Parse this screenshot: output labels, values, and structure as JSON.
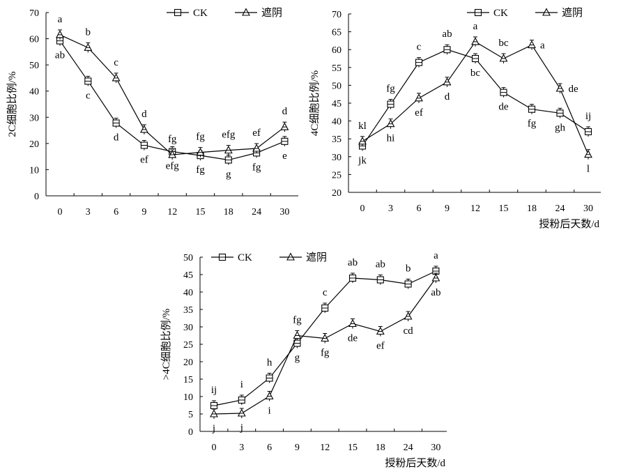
{
  "legend": {
    "ck": "CK",
    "shade": "遮阴"
  },
  "chart_data": [
    {
      "type": "line",
      "ylabel": "2C细胞比例/%",
      "xlabel": "",
      "categories": [
        "0",
        "3",
        "6",
        "9",
        "12",
        "15",
        "18",
        "24",
        "30"
      ],
      "ylim": [
        0,
        70
      ],
      "yticks": [
        0,
        10,
        20,
        30,
        40,
        50,
        60,
        70
      ],
      "series": [
        {
          "name": "CK",
          "marker": "square",
          "values": [
            59.2,
            43.8,
            27.8,
            19.3,
            16.9,
            15.4,
            13.7,
            16.4,
            20.8
          ],
          "letters": [
            "ab",
            "c",
            "d",
            "ef",
            "efg",
            "fg",
            "g",
            "fg",
            "e"
          ],
          "letter_pos": [
            "below",
            "below",
            "below",
            "below",
            "below",
            "below",
            "below",
            "below",
            "below"
          ]
        },
        {
          "name": "遮阴",
          "marker": "triangle",
          "values": [
            61.5,
            56.6,
            45.0,
            25.3,
            15.7,
            16.6,
            17.4,
            18.1,
            26.3
          ],
          "letters": [
            "a",
            "b",
            "c",
            "d",
            "fg",
            "fg",
            "efg",
            "ef",
            "d"
          ],
          "letter_pos": [
            "above",
            "above",
            "above",
            "above",
            "above",
            "above",
            "above",
            "above",
            "above"
          ]
        }
      ]
    },
    {
      "type": "line",
      "ylabel": "4C细胞比例/%",
      "xlabel": "授粉后天数/d",
      "categories": [
        "0",
        "3",
        "6",
        "9",
        "12",
        "15",
        "18",
        "24",
        "30"
      ],
      "ylim": [
        20,
        70
      ],
      "yticks": [
        20,
        25,
        30,
        35,
        40,
        45,
        50,
        55,
        60,
        65,
        70
      ],
      "series": [
        {
          "name": "CK",
          "marker": "square",
          "values": [
            33.0,
            44.7,
            56.4,
            60.0,
            57.5,
            48.0,
            43.3,
            42.2,
            37.0
          ],
          "letters": [
            "jk",
            "fg",
            "c",
            "ab",
            "bc",
            "de",
            "fg",
            "gh",
            "ij"
          ],
          "letter_pos": [
            "below",
            "above",
            "above",
            "above",
            "below",
            "below",
            "below",
            "below",
            "above"
          ]
        },
        {
          "name": "遮阴",
          "marker": "triangle",
          "values": [
            34.3,
            39.2,
            46.4,
            50.9,
            62.2,
            57.5,
            61.3,
            49.1,
            30.6
          ],
          "letters": [
            "kl",
            "hi",
            "ef",
            "d",
            "a",
            "bc",
            "a",
            "de",
            "l"
          ],
          "letter_pos": [
            "above",
            "below",
            "below",
            "below",
            "above",
            "above",
            "right",
            "right",
            "below"
          ]
        }
      ]
    },
    {
      "type": "line",
      "ylabel": ">4C细胞比例/%",
      "xlabel": "授粉后天数/d",
      "categories": [
        "0",
        "3",
        "6",
        "9",
        "12",
        "15",
        "18",
        "24",
        "30"
      ],
      "ylim": [
        0,
        50
      ],
      "yticks": [
        0,
        5,
        10,
        15,
        20,
        25,
        30,
        35,
        40,
        45,
        50
      ],
      "series": [
        {
          "name": "CK",
          "marker": "square",
          "values": [
            7.4,
            9.0,
            15.3,
            25.3,
            35.4,
            44.0,
            43.5,
            42.3,
            46.0
          ],
          "letters": [
            "ij",
            "i",
            "h",
            "g",
            "c",
            "ab",
            "ab",
            "b",
            "a"
          ],
          "letter_pos": [
            "above",
            "above",
            "above",
            "below",
            "above",
            "above",
            "above",
            "above",
            "above"
          ]
        },
        {
          "name": "遮阴",
          "marker": "triangle",
          "values": [
            5.0,
            5.2,
            10.1,
            27.5,
            26.7,
            30.9,
            28.7,
            33.0,
            44.0
          ],
          "letters": [
            "j",
            "j",
            "i",
            "fg",
            "fg",
            "de",
            "ef",
            "cd",
            "ab"
          ],
          "letter_pos": [
            "below",
            "below",
            "below",
            "above",
            "below",
            "below",
            "below",
            "below",
            "below"
          ]
        }
      ]
    }
  ]
}
